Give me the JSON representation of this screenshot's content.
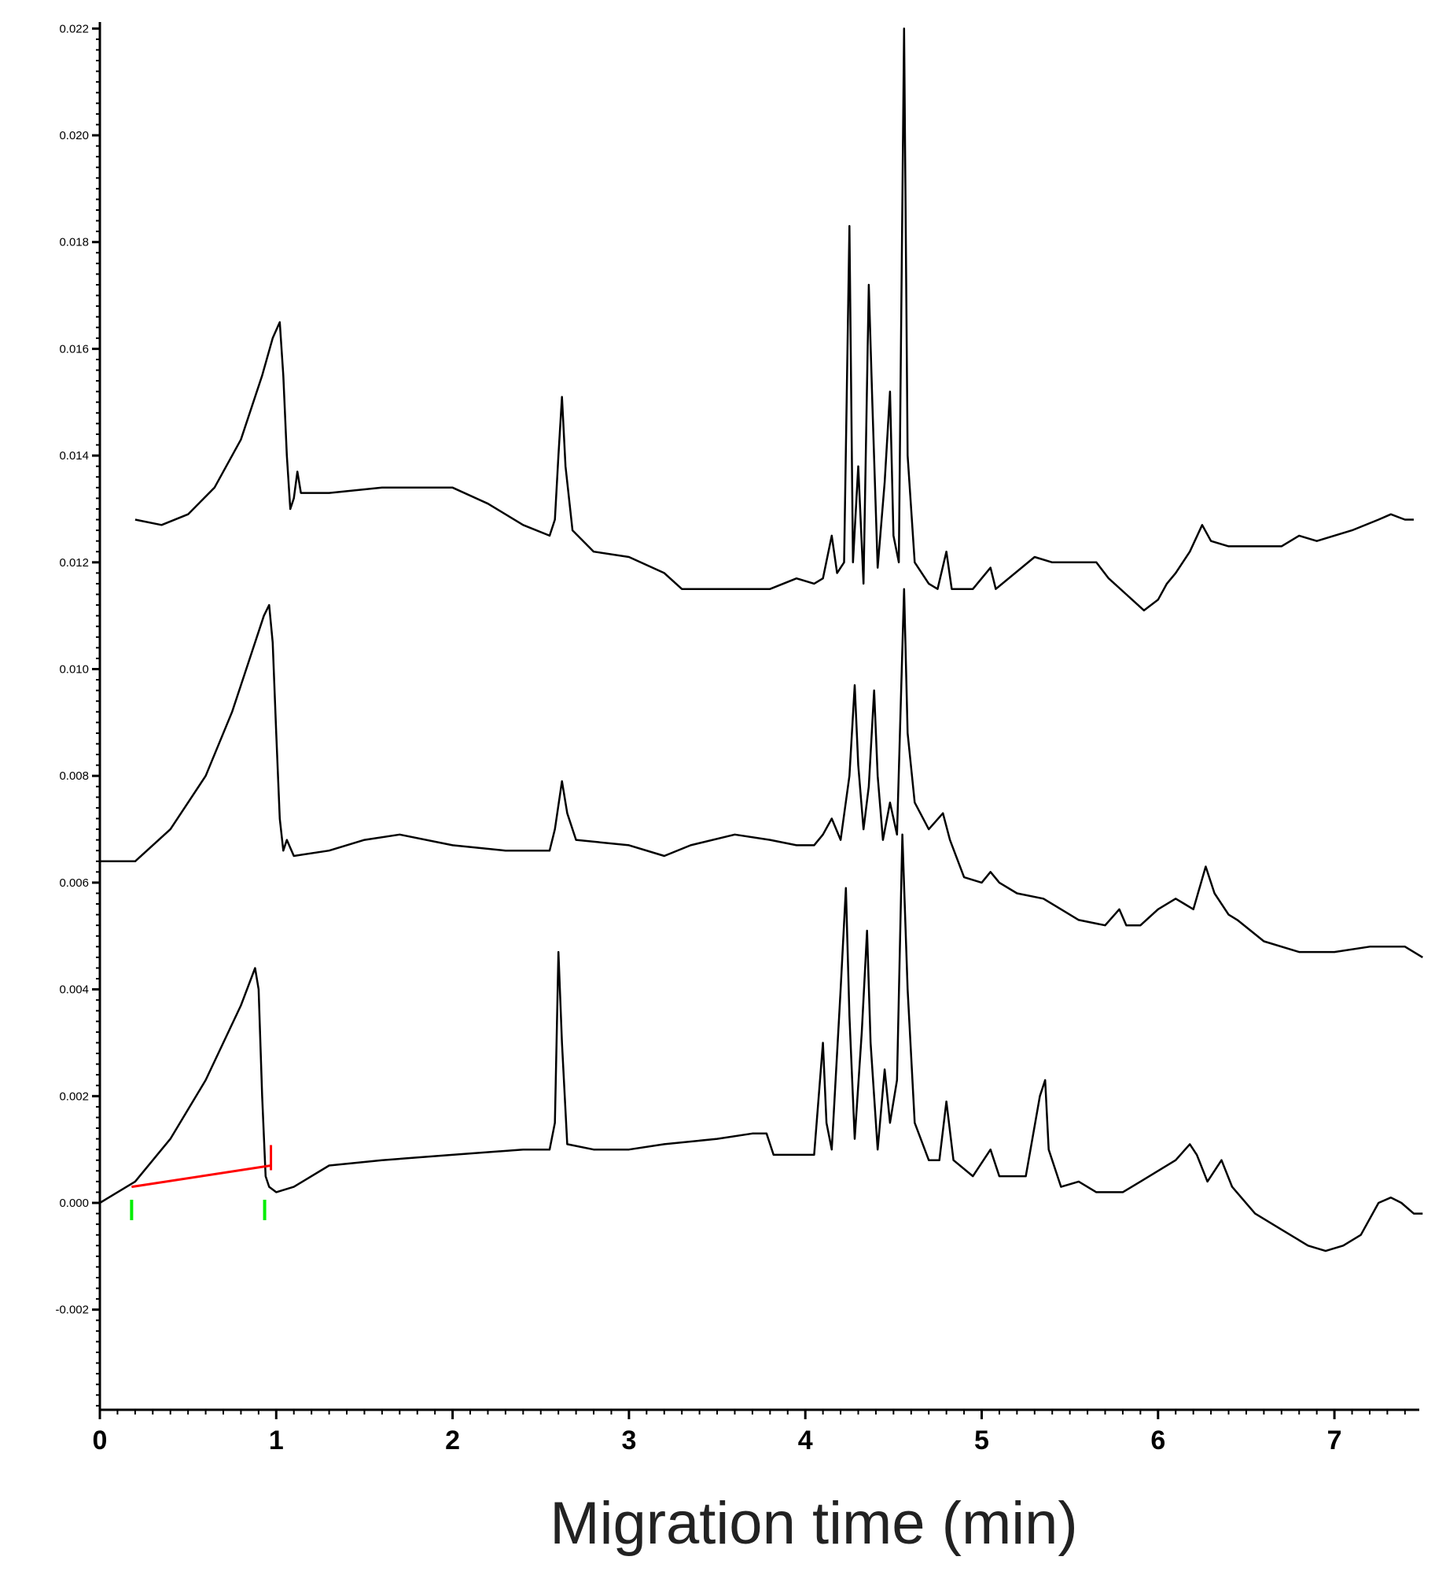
{
  "chart_data": {
    "type": "line",
    "title": "",
    "xlabel": "Migration time (min)",
    "ylabel": "",
    "xlim": [
      0,
      7.5
    ],
    "ylim": [
      -0.004,
      0.0225
    ],
    "grid": false,
    "legend": "none",
    "line_color": "#000000",
    "x_ticks": [
      0,
      1,
      2,
      3,
      4,
      5,
      6,
      7
    ],
    "x_tick_labels": [
      "0",
      "1",
      "2",
      "3",
      "4",
      "5",
      "6",
      "7"
    ],
    "y_ticks": [
      -0.002,
      0.0,
      0.002,
      0.004,
      0.006,
      0.008,
      0.01,
      0.012,
      0.014,
      0.016,
      0.018,
      0.02,
      0.022
    ],
    "y_tick_labels": [
      "-0.002",
      "0.000",
      "0.002",
      "0.004",
      "0.006",
      "0.008",
      "0.010",
      "0.012",
      "0.014",
      "0.016",
      "0.018",
      "0.020",
      "0.022"
    ],
    "series": [
      {
        "points": [
          [
            0.2,
            0.0128
          ],
          [
            0.35,
            0.0127
          ],
          [
            0.5,
            0.0129
          ],
          [
            0.65,
            0.0134
          ],
          [
            0.8,
            0.0143
          ],
          [
            0.92,
            0.0155
          ],
          [
            0.98,
            0.0162
          ],
          [
            1.02,
            0.0165
          ],
          [
            1.04,
            0.0155
          ],
          [
            1.06,
            0.014
          ],
          [
            1.08,
            0.013
          ],
          [
            1.1,
            0.0132
          ],
          [
            1.12,
            0.0137
          ],
          [
            1.14,
            0.0133
          ],
          [
            1.3,
            0.0133
          ],
          [
            1.6,
            0.0134
          ],
          [
            2.0,
            0.0134
          ],
          [
            2.2,
            0.0131
          ],
          [
            2.4,
            0.0127
          ],
          [
            2.55,
            0.0125
          ],
          [
            2.58,
            0.0128
          ],
          [
            2.6,
            0.014
          ],
          [
            2.62,
            0.0151
          ],
          [
            2.64,
            0.0138
          ],
          [
            2.68,
            0.0126
          ],
          [
            2.8,
            0.0122
          ],
          [
            3.0,
            0.0121
          ],
          [
            3.2,
            0.0118
          ],
          [
            3.3,
            0.0115
          ],
          [
            3.5,
            0.0115
          ],
          [
            3.8,
            0.0115
          ],
          [
            3.95,
            0.0117
          ],
          [
            4.05,
            0.0116
          ],
          [
            4.1,
            0.0117
          ],
          [
            4.15,
            0.0125
          ],
          [
            4.18,
            0.0118
          ],
          [
            4.22,
            0.012
          ],
          [
            4.25,
            0.0183
          ],
          [
            4.27,
            0.012
          ],
          [
            4.3,
            0.0138
          ],
          [
            4.33,
            0.0116
          ],
          [
            4.36,
            0.0172
          ],
          [
            4.38,
            0.015
          ],
          [
            4.41,
            0.0119
          ],
          [
            4.45,
            0.0135
          ],
          [
            4.48,
            0.0152
          ],
          [
            4.5,
            0.0125
          ],
          [
            4.53,
            0.012
          ],
          [
            4.56,
            0.022
          ],
          [
            4.58,
            0.014
          ],
          [
            4.62,
            0.012
          ],
          [
            4.7,
            0.0116
          ],
          [
            4.75,
            0.0115
          ],
          [
            4.8,
            0.0122
          ],
          [
            4.83,
            0.0115
          ],
          [
            4.95,
            0.0115
          ],
          [
            5.05,
            0.0119
          ],
          [
            5.08,
            0.0115
          ],
          [
            5.3,
            0.0121
          ],
          [
            5.4,
            0.012
          ],
          [
            5.65,
            0.012
          ],
          [
            5.72,
            0.0117
          ],
          [
            5.82,
            0.0114
          ],
          [
            5.92,
            0.0111
          ],
          [
            6.0,
            0.0113
          ],
          [
            6.05,
            0.0116
          ],
          [
            6.1,
            0.0118
          ],
          [
            6.18,
            0.0122
          ],
          [
            6.25,
            0.0127
          ],
          [
            6.3,
            0.0124
          ],
          [
            6.4,
            0.0123
          ],
          [
            6.7,
            0.0123
          ],
          [
            6.8,
            0.0125
          ],
          [
            6.9,
            0.0124
          ],
          [
            7.1,
            0.0126
          ],
          [
            7.25,
            0.0128
          ],
          [
            7.32,
            0.0129
          ],
          [
            7.4,
            0.0128
          ],
          [
            7.45,
            0.0128
          ]
        ]
      },
      {
        "points": [
          [
            0.0,
            0.0064
          ],
          [
            0.2,
            0.0064
          ],
          [
            0.4,
            0.007
          ],
          [
            0.6,
            0.008
          ],
          [
            0.75,
            0.0092
          ],
          [
            0.85,
            0.0102
          ],
          [
            0.93,
            0.011
          ],
          [
            0.96,
            0.0112
          ],
          [
            0.98,
            0.0105
          ],
          [
            1.0,
            0.0088
          ],
          [
            1.02,
            0.0072
          ],
          [
            1.04,
            0.0066
          ],
          [
            1.06,
            0.0068
          ],
          [
            1.1,
            0.0065
          ],
          [
            1.3,
            0.0066
          ],
          [
            1.5,
            0.0068
          ],
          [
            1.7,
            0.0069
          ],
          [
            2.0,
            0.0067
          ],
          [
            2.3,
            0.0066
          ],
          [
            2.55,
            0.0066
          ],
          [
            2.58,
            0.007
          ],
          [
            2.62,
            0.0079
          ],
          [
            2.65,
            0.0073
          ],
          [
            2.7,
            0.0068
          ],
          [
            3.0,
            0.0067
          ],
          [
            3.2,
            0.0065
          ],
          [
            3.35,
            0.0067
          ],
          [
            3.6,
            0.0069
          ],
          [
            3.8,
            0.0068
          ],
          [
            3.95,
            0.0067
          ],
          [
            4.05,
            0.0067
          ],
          [
            4.1,
            0.0069
          ],
          [
            4.15,
            0.0072
          ],
          [
            4.2,
            0.0068
          ],
          [
            4.25,
            0.008
          ],
          [
            4.28,
            0.0097
          ],
          [
            4.3,
            0.0082
          ],
          [
            4.33,
            0.007
          ],
          [
            4.36,
            0.0078
          ],
          [
            4.39,
            0.0096
          ],
          [
            4.41,
            0.008
          ],
          [
            4.44,
            0.0068
          ],
          [
            4.48,
            0.0075
          ],
          [
            4.52,
            0.0069
          ],
          [
            4.56,
            0.0115
          ],
          [
            4.58,
            0.0088
          ],
          [
            4.62,
            0.0075
          ],
          [
            4.7,
            0.007
          ],
          [
            4.78,
            0.0073
          ],
          [
            4.82,
            0.0068
          ],
          [
            4.9,
            0.0061
          ],
          [
            5.0,
            0.006
          ],
          [
            5.05,
            0.0062
          ],
          [
            5.1,
            0.006
          ],
          [
            5.2,
            0.0058
          ],
          [
            5.35,
            0.0057
          ],
          [
            5.45,
            0.0055
          ],
          [
            5.55,
            0.0053
          ],
          [
            5.7,
            0.0052
          ],
          [
            5.78,
            0.0055
          ],
          [
            5.82,
            0.0052
          ],
          [
            5.9,
            0.0052
          ],
          [
            6.0,
            0.0055
          ],
          [
            6.1,
            0.0057
          ],
          [
            6.15,
            0.0056
          ],
          [
            6.2,
            0.0055
          ],
          [
            6.27,
            0.0063
          ],
          [
            6.32,
            0.0058
          ],
          [
            6.4,
            0.0054
          ],
          [
            6.45,
            0.0053
          ],
          [
            6.6,
            0.0049
          ],
          [
            6.8,
            0.0047
          ],
          [
            7.0,
            0.0047
          ],
          [
            7.2,
            0.0048
          ],
          [
            7.4,
            0.0048
          ],
          [
            7.5,
            0.0046
          ]
        ]
      },
      {
        "points": [
          [
            0.0,
            0.0
          ],
          [
            0.2,
            0.0004
          ],
          [
            0.4,
            0.0012
          ],
          [
            0.6,
            0.0023
          ],
          [
            0.8,
            0.0037
          ],
          [
            0.88,
            0.0044
          ],
          [
            0.9,
            0.004
          ],
          [
            0.92,
            0.002
          ],
          [
            0.94,
            0.0005
          ],
          [
            0.96,
            0.0003
          ],
          [
            1.0,
            0.0002
          ],
          [
            1.1,
            0.0003
          ],
          [
            1.3,
            0.0007
          ],
          [
            1.6,
            0.0008
          ],
          [
            2.0,
            0.0009
          ],
          [
            2.4,
            0.001
          ],
          [
            2.55,
            0.001
          ],
          [
            2.58,
            0.0015
          ],
          [
            2.6,
            0.0047
          ],
          [
            2.62,
            0.003
          ],
          [
            2.65,
            0.0011
          ],
          [
            2.8,
            0.001
          ],
          [
            3.0,
            0.001
          ],
          [
            3.2,
            0.0011
          ],
          [
            3.5,
            0.0012
          ],
          [
            3.7,
            0.0013
          ],
          [
            3.78,
            0.0013
          ],
          [
            3.82,
            0.0009
          ],
          [
            4.0,
            0.0009
          ],
          [
            4.05,
            0.0009
          ],
          [
            4.1,
            0.003
          ],
          [
            4.12,
            0.0015
          ],
          [
            4.15,
            0.001
          ],
          [
            4.2,
            0.004
          ],
          [
            4.23,
            0.0059
          ],
          [
            4.25,
            0.0035
          ],
          [
            4.28,
            0.0012
          ],
          [
            4.32,
            0.0032
          ],
          [
            4.35,
            0.0051
          ],
          [
            4.37,
            0.003
          ],
          [
            4.41,
            0.001
          ],
          [
            4.45,
            0.0025
          ],
          [
            4.48,
            0.0015
          ],
          [
            4.52,
            0.0023
          ],
          [
            4.55,
            0.0069
          ],
          [
            4.58,
            0.004
          ],
          [
            4.62,
            0.0015
          ],
          [
            4.7,
            0.0008
          ],
          [
            4.76,
            0.0008
          ],
          [
            4.8,
            0.0019
          ],
          [
            4.84,
            0.0008
          ],
          [
            4.95,
            0.0005
          ],
          [
            5.05,
            0.001
          ],
          [
            5.1,
            0.0005
          ],
          [
            5.25,
            0.0005
          ],
          [
            5.33,
            0.002
          ],
          [
            5.36,
            0.0023
          ],
          [
            5.38,
            0.001
          ],
          [
            5.45,
            0.0003
          ],
          [
            5.55,
            0.0004
          ],
          [
            5.65,
            0.0002
          ],
          [
            5.8,
            0.0002
          ],
          [
            5.9,
            0.0004
          ],
          [
            6.0,
            0.0006
          ],
          [
            6.1,
            0.0008
          ],
          [
            6.18,
            0.0011
          ],
          [
            6.22,
            0.0009
          ],
          [
            6.28,
            0.0004
          ],
          [
            6.36,
            0.0008
          ],
          [
            6.42,
            0.0003
          ],
          [
            6.55,
            -0.0002
          ],
          [
            6.7,
            -0.0005
          ],
          [
            6.85,
            -0.0008
          ],
          [
            6.95,
            -0.0009
          ],
          [
            7.05,
            -0.0008
          ],
          [
            7.15,
            -0.0006
          ],
          [
            7.25,
            0.0
          ],
          [
            7.32,
            0.0001
          ],
          [
            7.38,
            0.0
          ],
          [
            7.45,
            -0.0002
          ],
          [
            7.5,
            -0.0002
          ]
        ]
      }
    ],
    "baseline_marker": {
      "color": "#ff0000",
      "marker_color": "#00ee00",
      "start": [
        0.18,
        0.0003
      ],
      "end": [
        0.97,
        0.0007
      ]
    }
  }
}
